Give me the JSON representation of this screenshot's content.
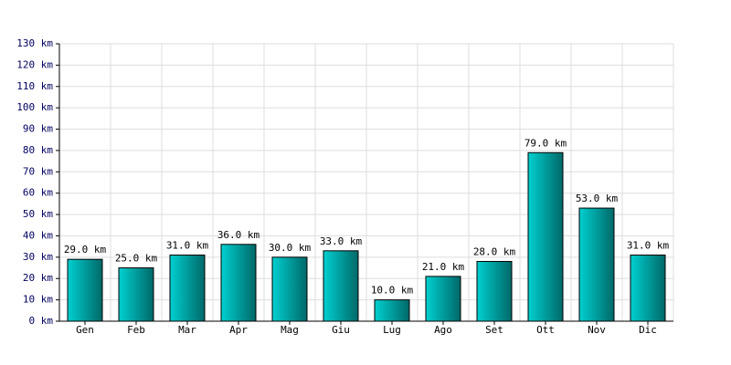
{
  "chart_data": {
    "type": "bar",
    "categories": [
      "Gen",
      "Feb",
      "Mar",
      "Apr",
      "Mag",
      "Giu",
      "Lug",
      "Ago",
      "Set",
      "Ott",
      "Nov",
      "Dic"
    ],
    "values": [
      29,
      25,
      31,
      36,
      30,
      33,
      10,
      21,
      28,
      79,
      53,
      31
    ],
    "value_labels": [
      "29.0 km",
      "25.0 km",
      "31.0 km",
      "36.0 km",
      "30.0 km",
      "33.0 km",
      "10.0 km",
      "21.0 km",
      "28.0 km",
      "79.0 km",
      "53.0 km",
      "31.0 km"
    ],
    "color": "#00d0d0",
    "ylim": [
      0,
      130
    ],
    "yticks": [
      {
        "value": 0,
        "label": "0 km"
      },
      {
        "value": 10,
        "label": "10 km"
      },
      {
        "value": 20,
        "label": "20 km"
      },
      {
        "value": 30,
        "label": "30 km"
      },
      {
        "value": 40,
        "label": "40 km"
      },
      {
        "value": 50,
        "label": "50 km"
      },
      {
        "value": 60,
        "label": "60 km"
      },
      {
        "value": 70,
        "label": "70 km"
      },
      {
        "value": 80,
        "label": "80 km"
      },
      {
        "value": 90,
        "label": "90 km"
      },
      {
        "value": 100,
        "label": "100 km"
      },
      {
        "value": 110,
        "label": "110 km"
      },
      {
        "value": 120,
        "label": "120 km"
      },
      {
        "value": 130,
        "label": "130 km"
      }
    ],
    "grid": true
  }
}
